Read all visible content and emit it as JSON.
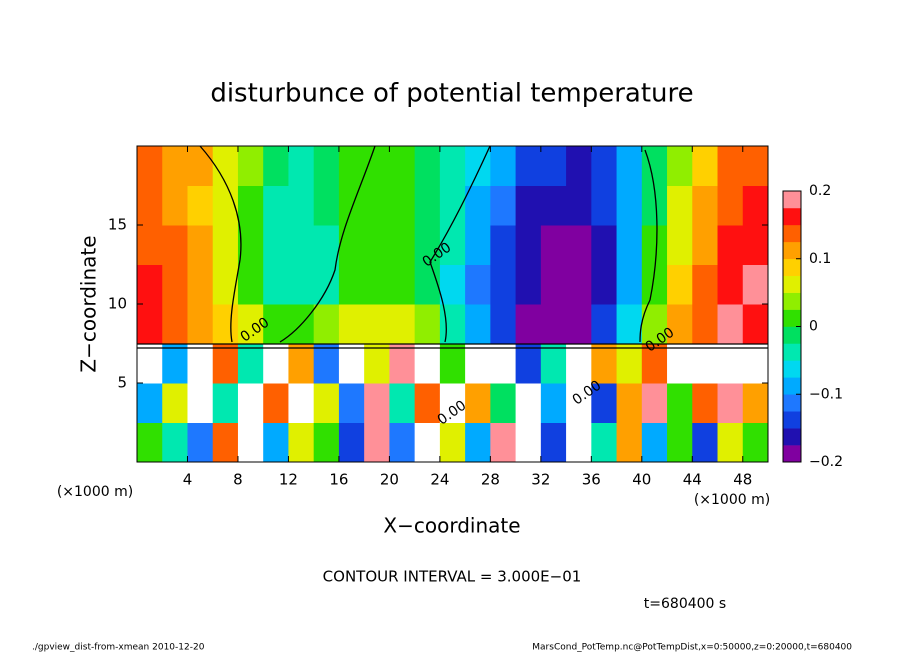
{
  "chart_data": {
    "type": "heatmap",
    "title": "disturbunce of potential temperature",
    "xlabel": "X−coordinate",
    "ylabel": "Z−coordinate",
    "x_unit": "(×1000 m)",
    "y_unit": "(×1000 m)",
    "xlim": [
      0,
      50
    ],
    "ylim": [
      0,
      20
    ],
    "xticks": [
      4,
      8,
      12,
      16,
      20,
      24,
      28,
      32,
      36,
      40,
      44,
      48
    ],
    "yticks": [
      5,
      10,
      15
    ],
    "x": [
      1,
      3,
      5,
      7,
      9,
      11,
      13,
      15,
      17,
      19,
      21,
      23,
      25,
      27,
      29,
      31,
      33,
      35,
      37,
      39,
      41,
      43,
      45,
      47,
      49
    ],
    "z": [
      1.25,
      3.75,
      6.25,
      8.75,
      11.25,
      13.75,
      16.25,
      18.75
    ],
    "values": [
      [
        0.0,
        -0.05,
        -0.12,
        0.15,
        0.25,
        -0.1,
        0.05,
        0.0,
        -0.15,
        0.2,
        -0.12,
        0.25,
        0.05,
        -0.1,
        0.2,
        0.25,
        -0.15,
        0.25,
        -0.05,
        0.1,
        -0.1,
        0.0,
        -0.15,
        0.05,
        0.0
      ],
      [
        -0.1,
        0.05,
        0.25,
        -0.05,
        0.25,
        0.15,
        0.25,
        0.05,
        -0.12,
        0.2,
        -0.05,
        0.15,
        0.25,
        0.1,
        -0.02,
        0.25,
        -0.1,
        0.25,
        -0.15,
        0.1,
        0.2,
        0.0,
        0.15,
        0.2,
        0.1
      ],
      [
        0.25,
        -0.1,
        0.25,
        0.15,
        -0.05,
        0.25,
        0.1,
        -0.12,
        0.25,
        0.05,
        0.2,
        0.25,
        0.0,
        0.25,
        0.25,
        -0.15,
        -0.05,
        0.25,
        0.1,
        0.05,
        0.15,
        0.25,
        0.25,
        0.25,
        0.25
      ],
      [
        0.16,
        0.14,
        0.12,
        0.09,
        0.05,
        0.02,
        0.01,
        0.03,
        0.05,
        0.06,
        0.05,
        0.03,
        -0.03,
        -0.1,
        -0.14,
        -0.19,
        -0.2,
        -0.2,
        -0.15,
        -0.06,
        0.03,
        0.1,
        0.15,
        0.18,
        0.17
      ],
      [
        0.16,
        0.15,
        0.12,
        0.07,
        0.02,
        -0.03,
        -0.04,
        -0.03,
        0.0,
        0.02,
        0.01,
        -0.01,
        -0.06,
        -0.11,
        -0.15,
        -0.17,
        -0.19,
        -0.19,
        -0.16,
        -0.08,
        0.01,
        0.08,
        0.13,
        0.17,
        0.18
      ],
      [
        0.15,
        0.13,
        0.1,
        0.06,
        0.0,
        -0.03,
        -0.04,
        -0.03,
        0.0,
        0.02,
        0.0,
        -0.02,
        -0.05,
        -0.1,
        -0.14,
        -0.17,
        -0.18,
        -0.19,
        -0.16,
        -0.09,
        0.0,
        0.07,
        0.12,
        0.16,
        0.17
      ],
      [
        0.14,
        0.12,
        0.09,
        0.05,
        0.0,
        -0.03,
        -0.04,
        -0.02,
        0.0,
        0.01,
        0.0,
        -0.02,
        -0.04,
        -0.08,
        -0.12,
        -0.16,
        -0.17,
        -0.17,
        -0.15,
        -0.08,
        -0.01,
        0.06,
        0.11,
        0.15,
        0.16
      ],
      [
        0.13,
        0.12,
        0.1,
        0.07,
        0.03,
        -0.02,
        -0.03,
        -0.02,
        0.0,
        0.01,
        0.0,
        -0.01,
        -0.03,
        -0.06,
        -0.09,
        -0.13,
        -0.15,
        -0.16,
        -0.14,
        -0.08,
        -0.02,
        0.04,
        0.09,
        0.13,
        0.14
      ]
    ],
    "clim": [
      -0.2,
      0.2
    ],
    "colors": [
      "#8000a0",
      "#2010b0",
      "#1040e0",
      "#1e78ff",
      "#00aaff",
      "#00d8f0",
      "#00e8b0",
      "#00e060",
      "#30e000",
      "#90ee00",
      "#e0f000",
      "#ffd000",
      "#ffa000",
      "#ff6000",
      "#ff1010",
      "#ff9098"
    ],
    "over_color": "#ffffff",
    "cticks": [
      {
        "value": -0.2,
        "label": "−0.2"
      },
      {
        "value": -0.1,
        "label": "−0.1"
      },
      0,
      0.1,
      0.2
    ],
    "contour_labels": [
      "0.00",
      "0.00",
      "0.00",
      "0.00",
      "0.00"
    ],
    "contour_interval": "CONTOUR INTERVAL = 3.000E−01",
    "time": "t=680400 s",
    "footer_left": "./gpview_dist-from-xmean  2010-12-20",
    "footer_right": "MarsCond_PotTemp.nc@PotTempDist,x=0:50000,z=0:20000,t=680400"
  }
}
